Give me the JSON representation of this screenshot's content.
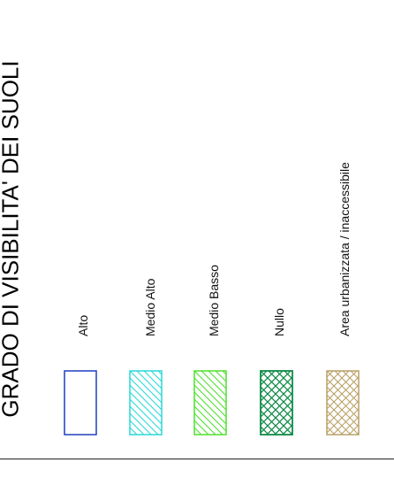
{
  "title": "GRADO DI VISIBILITA' DEI SUOLI",
  "legend": [
    {
      "label": "Alto",
      "color": "#1f3fbf",
      "pattern": "none"
    },
    {
      "label": "Medio Alto",
      "color": "#2ad8d8",
      "pattern": "diagonal"
    },
    {
      "label": "Medio Basso",
      "color": "#4ee02e",
      "pattern": "diagonal"
    },
    {
      "label": "Nullo",
      "color": "#108a48",
      "pattern": "crosshatch"
    },
    {
      "label": "Area urbanizzata / inaccessibile",
      "color": "#b8a066",
      "pattern": "crosshatch"
    }
  ]
}
